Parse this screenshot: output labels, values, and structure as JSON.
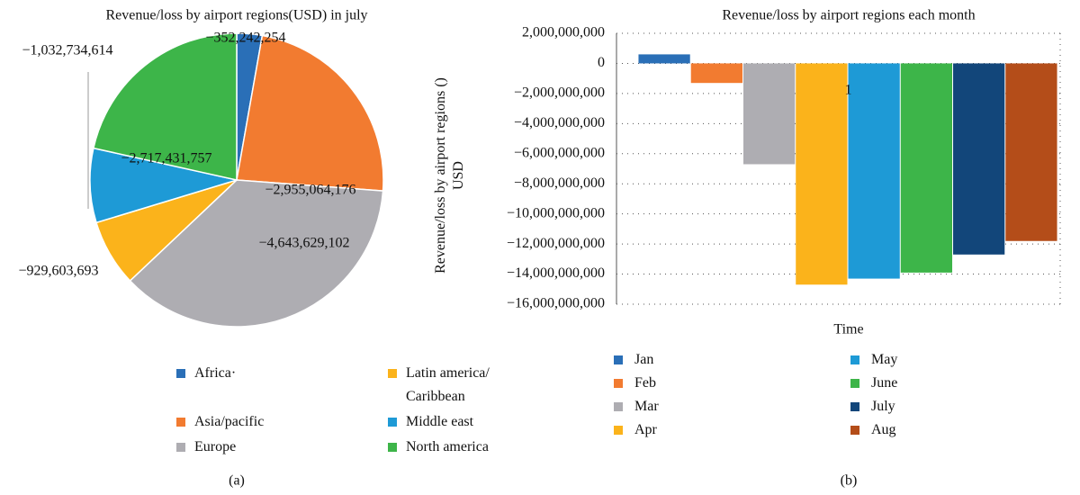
{
  "chart_data": [
    {
      "type": "pie",
      "title": "Revenue/loss by airport regions(USD) in july",
      "categories": [
        "Africa·",
        "Asia/pacific",
        "Europe",
        "Latin america/ Caribbean",
        "Middle east",
        "North america"
      ],
      "values": [
        -352242254,
        -2955064176,
        -4643629102,
        -929603693,
        -1032734614,
        -2717431757
      ],
      "value_labels": [
        "−352,242,254",
        "−2,955,064,176",
        "−4,643,629,102",
        "−929,603,693",
        "−1,032,734,614",
        "−2,717,431,757"
      ],
      "colors": [
        "#2a6fb7",
        "#f27b30",
        "#aeadb2",
        "#fbb31b",
        "#1e9ad6",
        "#3db549"
      ],
      "caption": "(a)"
    },
    {
      "type": "bar",
      "title": "Revenue/loss by airport regions each month",
      "ylabel": "Revenue/loss by airport regions () USD",
      "xlabel": "Time",
      "categories": [
        "1"
      ],
      "series": [
        {
          "name": "Jan",
          "color": "#2a6fb7",
          "values": [
            600000000
          ]
        },
        {
          "name": "Feb",
          "color": "#f27b30",
          "values": [
            -1300000000
          ]
        },
        {
          "name": "Mar",
          "color": "#aeadb2",
          "values": [
            -6700000000
          ]
        },
        {
          "name": "Apr",
          "color": "#fbb31b",
          "values": [
            -14700000000
          ]
        },
        {
          "name": "May",
          "color": "#1e9ad6",
          "values": [
            -14300000000
          ]
        },
        {
          "name": "June",
          "color": "#3db549",
          "values": [
            -13900000000
          ]
        },
        {
          "name": "July",
          "color": "#12467a",
          "values": [
            -12700000000
          ]
        },
        {
          "name": "Aug",
          "color": "#b44d19",
          "values": [
            -11800000000
          ]
        }
      ],
      "ylim": [
        -16000000000,
        2000000000
      ],
      "yticks": [
        {
          "value": 2000000000,
          "label": "2,000,000,000"
        },
        0,
        {
          "value": -2000000000,
          "label": "−2,000,000,000"
        },
        {
          "value": -4000000000,
          "label": "−4,000,000,000"
        },
        {
          "value": -6000000000,
          "label": "−6,000,000,000"
        },
        {
          "value": -8000000000,
          "label": "−8,000,000,000"
        },
        {
          "value": -10000000000,
          "label": "−10,000,000,000"
        },
        {
          "value": -12000000000,
          "label": "−12,000,000,000"
        },
        {
          "value": -14000000000,
          "label": "−14,000,000,000"
        },
        {
          "value": -16000000000,
          "label": "−16,000,000,000"
        }
      ],
      "grid": true,
      "caption": "(b)"
    }
  ]
}
